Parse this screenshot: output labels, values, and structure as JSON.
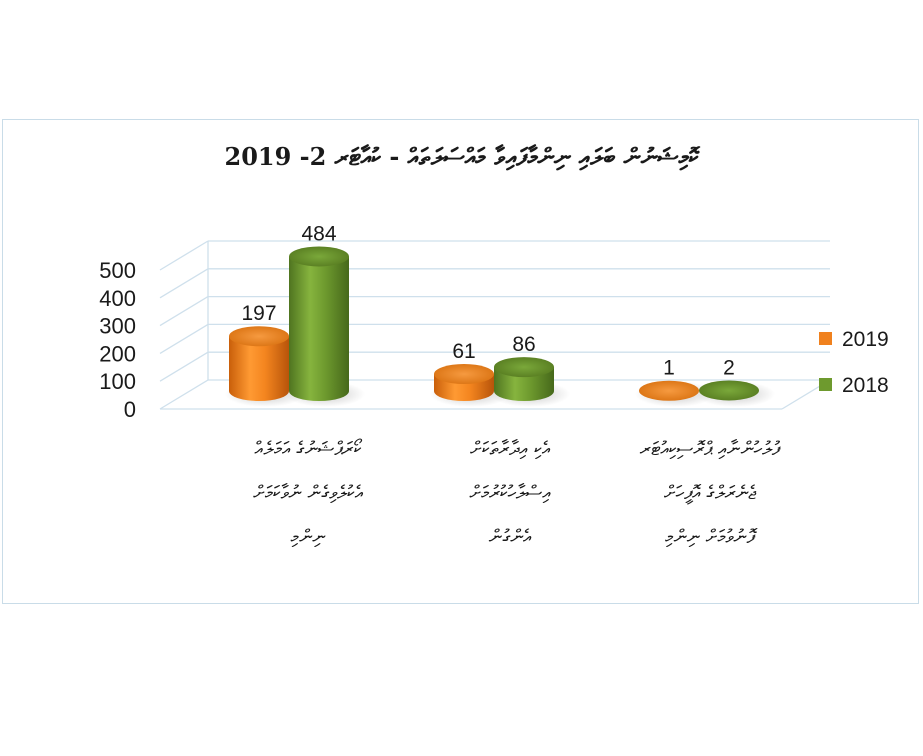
{
  "chart_data": {
    "type": "bar",
    "title": "ކޮމިޝަނުން ބަލައި ނިންމާފައިވާ މައްސަލަތައް - ކުއާޓަރ 2- 2019",
    "categories": [
      [
        "ކޯރަޕްޝަނުގެ އަމަލެއް",
        "އެކުލެވިގެން ނުވާކަމަށް",
        "ނިންމި"
      ],
      [
        "އެކި އިދާރާތަކަށް",
        "އިސްލާހުކުރުމަށް",
        "އެންގުން"
      ],
      [
        "ފުލުހުންނާއި ޕްރޮސިކިއުޓަރ",
        "ޖެނެރަލްގެ އޮފީހަށް",
        "ފޮނުވުމަށް ނިންމި"
      ]
    ],
    "series": [
      {
        "name": "2019",
        "values": [
          197,
          61,
          1
        ],
        "color": "#f0811e"
      },
      {
        "name": "2018",
        "values": [
          484,
          86,
          2
        ],
        "color": "#6e9a2e"
      }
    ],
    "yticks": [
      "0",
      "100",
      "200",
      "300",
      "400",
      "500"
    ],
    "ylim": [
      0,
      500
    ],
    "legend_position": "right",
    "grid": true
  }
}
